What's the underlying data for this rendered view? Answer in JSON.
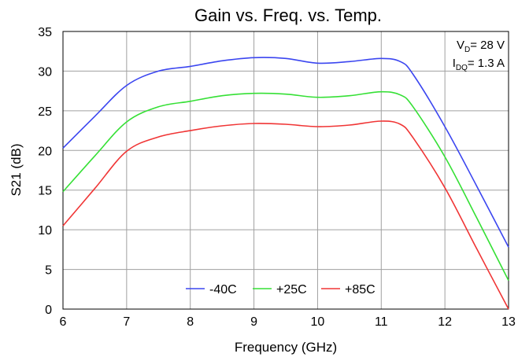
{
  "chart_data": {
    "type": "line",
    "title": "Gain vs. Freq. vs. Temp.",
    "xlabel": "Frequency (GHz)",
    "ylabel": "S21 (dB)",
    "xlim": [
      6,
      13
    ],
    "ylim": [
      0,
      35
    ],
    "xticks": [
      6,
      7,
      8,
      9,
      10,
      11,
      12,
      13
    ],
    "yticks": [
      0,
      5,
      10,
      15,
      20,
      25,
      30,
      35
    ],
    "grid": true,
    "legend_position": "bottom-center",
    "annotation": {
      "vd_prefix": "V",
      "vd_sub": "D",
      "vd_value": "= 28 V",
      "idq_prefix": "I",
      "idq_sub": "DQ",
      "idq_value": "= 1.3 A"
    },
    "series": [
      {
        "name": "-40C",
        "color": "#3b46f0",
        "x": [
          6.0,
          6.5,
          7.0,
          7.5,
          8.0,
          8.5,
          9.0,
          9.5,
          10.0,
          10.5,
          11.0,
          11.3,
          11.5,
          12.0,
          12.5,
          13.0
        ],
        "y": [
          20.3,
          24.3,
          28.2,
          30.0,
          30.6,
          31.3,
          31.7,
          31.6,
          31.0,
          31.2,
          31.6,
          31.2,
          29.6,
          23.0,
          15.5,
          7.8
        ]
      },
      {
        "name": "+25C",
        "color": "#35e035",
        "x": [
          6.0,
          6.5,
          7.0,
          7.5,
          8.0,
          8.5,
          9.0,
          9.5,
          10.0,
          10.5,
          11.0,
          11.3,
          11.5,
          12.0,
          12.5,
          13.0
        ],
        "y": [
          14.8,
          19.3,
          23.6,
          25.5,
          26.2,
          26.9,
          27.2,
          27.1,
          26.7,
          26.9,
          27.4,
          27.0,
          25.5,
          19.2,
          11.5,
          3.6
        ]
      },
      {
        "name": "+85C",
        "color": "#f03535",
        "x": [
          6.0,
          6.5,
          7.0,
          7.5,
          8.0,
          8.5,
          9.0,
          9.5,
          10.0,
          10.5,
          11.0,
          11.3,
          11.5,
          12.0,
          12.5,
          13.0
        ],
        "y": [
          10.5,
          15.2,
          19.9,
          21.7,
          22.5,
          23.1,
          23.4,
          23.3,
          23.0,
          23.2,
          23.7,
          23.3,
          21.6,
          15.3,
          7.6,
          0.0
        ]
      }
    ]
  }
}
